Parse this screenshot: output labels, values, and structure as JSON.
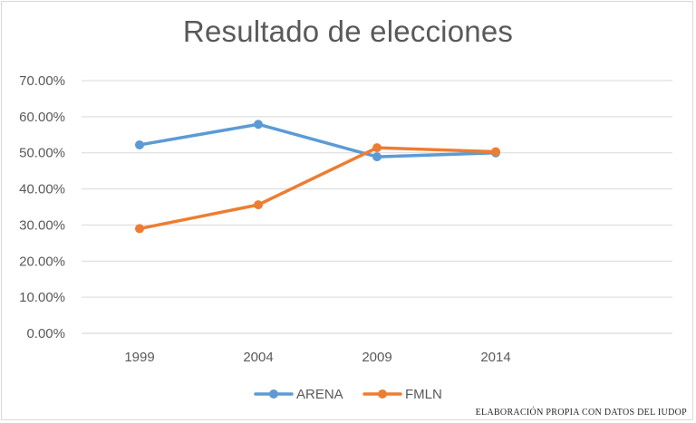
{
  "chart_data": {
    "type": "line",
    "title": "Resultado de elecciones",
    "xlabel": "",
    "ylabel": "",
    "categories": [
      "1999",
      "2004",
      "2009",
      "2014"
    ],
    "ylim": [
      0,
      0.7
    ],
    "ytick_values": [
      0,
      0.1,
      0.2,
      0.3,
      0.4,
      0.5,
      0.6,
      0.7
    ],
    "ytick_labels": [
      "0.00%",
      "10.00%",
      "20.00%",
      "30.00%",
      "40.00%",
      "50.00%",
      "60.00%",
      "70.00%"
    ],
    "grid": true,
    "legend_position": "bottom",
    "series": [
      {
        "name": "ARENA",
        "color": "#5b9bd5",
        "values": [
          0.522,
          0.579,
          0.489,
          0.5
        ]
      },
      {
        "name": "FMLN",
        "color": "#ed7d31",
        "values": [
          0.29,
          0.356,
          0.514,
          0.503
        ]
      }
    ]
  },
  "footer": {
    "source_note": "ELABORACIÓN PROPIA CON DATOS DEL IUDOP"
  }
}
